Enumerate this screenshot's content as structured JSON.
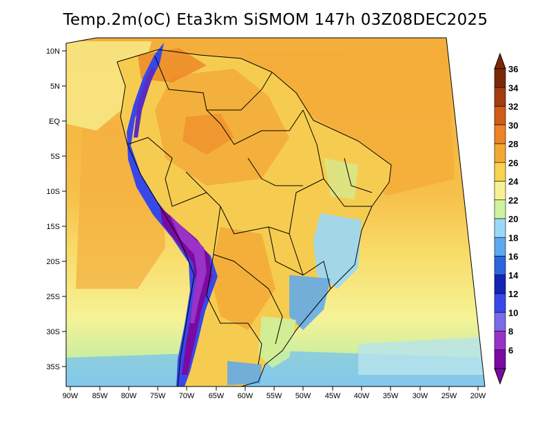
{
  "title": "Temp.2m(oC) Eta3km SiSMOM 147h 03Z08DEC2025",
  "map": {
    "lat_labels": [
      "10N",
      "5N",
      "EQ",
      "5S",
      "10S",
      "15S",
      "20S",
      "25S",
      "30S",
      "35S"
    ],
    "lon_labels": [
      "90W",
      "85W",
      "80W",
      "75W",
      "70W",
      "65W",
      "60W",
      "55W",
      "50W",
      "45W",
      "40W",
      "35W",
      "30W",
      "25W",
      "20W"
    ]
  },
  "colorbar": {
    "levels": [
      "6",
      "8",
      "10",
      "12",
      "14",
      "16",
      "18",
      "20",
      "22",
      "24",
      "26",
      "28",
      "30",
      "32",
      "34",
      "36"
    ],
    "colors": [
      "#7a0aa0",
      "#9a32c8",
      "#7a6ce8",
      "#3848e8",
      "#1424b4",
      "#2a66dc",
      "#5ca8f0",
      "#9ad8f8",
      "#cdf2a0",
      "#f8f094",
      "#f8d250",
      "#f4a834",
      "#ec8424",
      "#d05c18",
      "#a43c10",
      "#7a2808"
    ]
  }
}
